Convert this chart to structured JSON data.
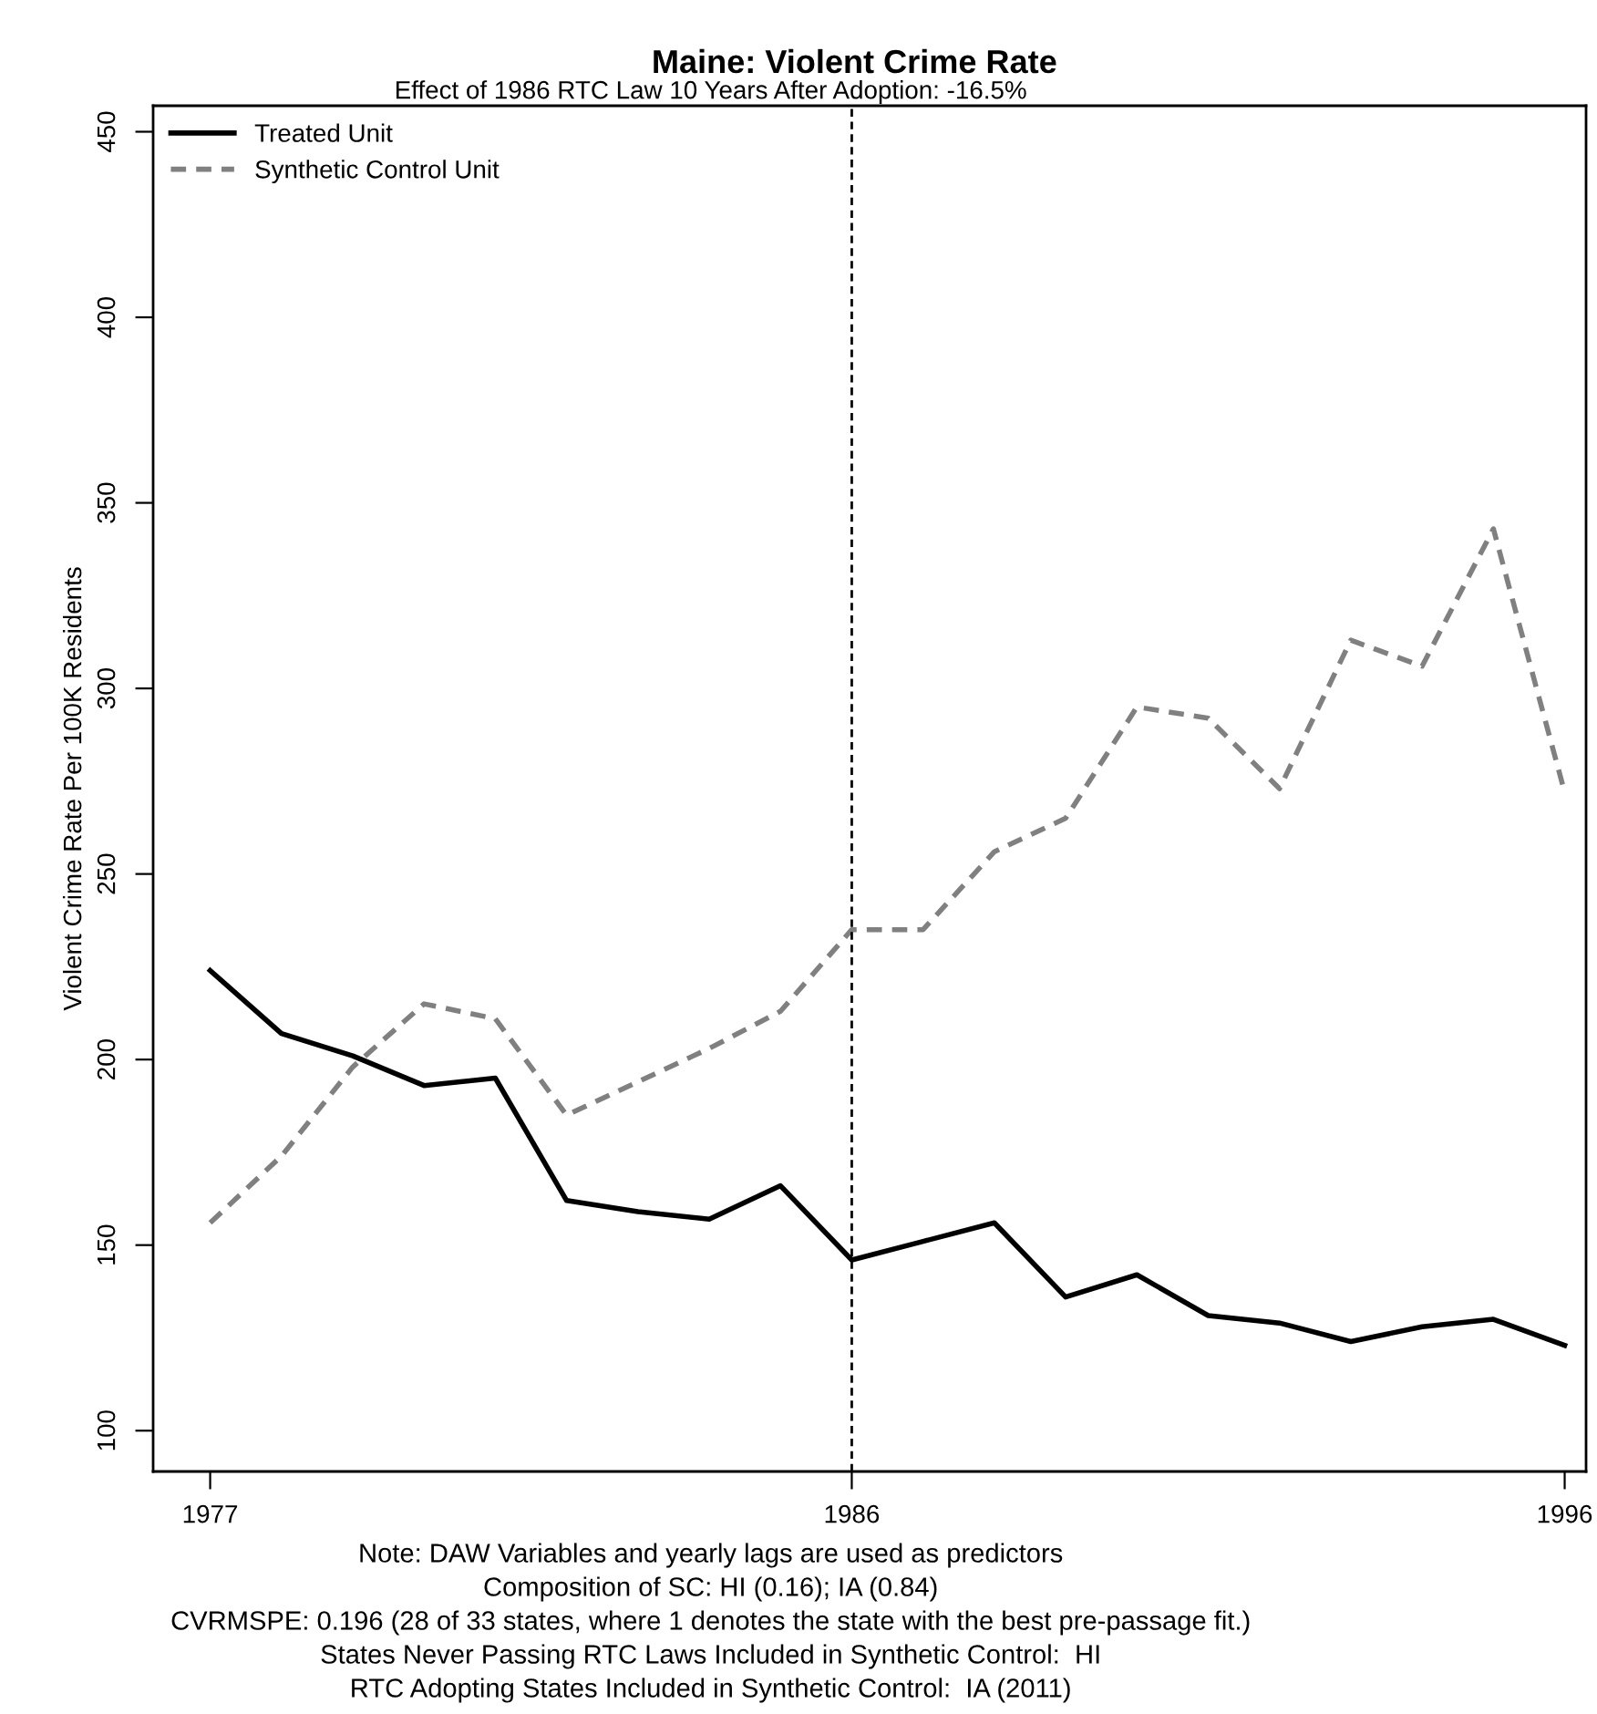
{
  "chart_data": {
    "type": "line",
    "title": "Maine: Violent Crime Rate",
    "subtitle": "Effect of 1986 RTC Law 10 Years After Adoption: -16.5%",
    "ylabel": "Violent Crime Rate Per 100K Residents",
    "x": [
      1977,
      1978,
      1979,
      1980,
      1981,
      1982,
      1983,
      1984,
      1985,
      1986,
      1987,
      1988,
      1989,
      1990,
      1991,
      1992,
      1993,
      1994,
      1995,
      1996
    ],
    "series": [
      {
        "name": "Treated Unit",
        "color": "#000000",
        "line_style": "solid",
        "values": [
          224,
          207,
          201,
          193,
          195,
          162,
          159,
          157,
          166,
          146,
          151,
          156,
          136,
          142,
          131,
          129,
          124,
          128,
          130,
          123
        ]
      },
      {
        "name": "Synthetic Control Unit",
        "color": "#808080",
        "line_style": "dashed",
        "values": [
          156,
          174,
          198,
          215,
          211,
          185,
          194,
          203,
          213,
          235,
          235,
          256,
          265,
          295,
          292,
          273,
          313,
          306,
          343,
          272
        ]
      }
    ],
    "xlim": [
      1976.2,
      1996.3
    ],
    "xticks": [
      1977,
      1986,
      1996
    ],
    "ylim": [
      89,
      457
    ],
    "yticks": [
      100,
      150,
      200,
      250,
      300,
      350,
      400,
      450
    ],
    "ref_lines": [
      {
        "axis": "x",
        "value": 1986,
        "label": null,
        "color": "#000000",
        "line_style": "dashed"
      }
    ],
    "legend": "top left",
    "grid": false,
    "marker": "none",
    "annotations": [
      "Note: DAW Variables and yearly lags are used as predictors",
      "Composition of SC: HI (0.16); IA (0.84)",
      "CVRMSPE: 0.196 (28 of 33 states, where 1 denotes the state with the best pre-passage fit.)",
      "States Never Passing RTC Laws Included in Synthetic Control:  HI",
      "RTC Adopting States Included in Synthetic Control:  IA (2011)"
    ]
  }
}
